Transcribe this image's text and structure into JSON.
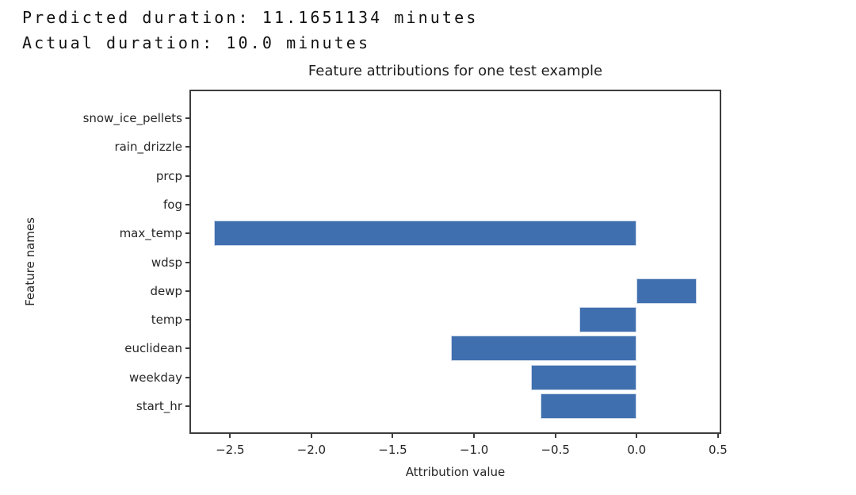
{
  "header": {
    "line1": "Predicted duration: 11.1651134 minutes",
    "line2": "Actual duration: 10.0 minutes"
  },
  "chart_data": {
    "type": "bar",
    "orientation": "horizontal",
    "title": "Feature attributions for one test example",
    "xlabel": "Attribution value",
    "ylabel": "Feature names",
    "categories": [
      "snow_ice_pellets",
      "rain_drizzle",
      "prcp",
      "fog",
      "max_temp",
      "wdsp",
      "dewp",
      "temp",
      "euclidean",
      "weekday",
      "start_hr"
    ],
    "values": [
      0.0,
      0.0,
      0.0,
      0.0,
      -2.6,
      0.0,
      0.37,
      -0.35,
      -1.14,
      -0.65,
      -0.59
    ],
    "xlim": [
      -2.75,
      0.52
    ],
    "xticks": [
      -2.5,
      -2.0,
      -1.5,
      -1.0,
      -0.5,
      0.0,
      0.5
    ],
    "xtick_labels": [
      "−2.5",
      "−2.0",
      "−1.5",
      "−1.0",
      "−0.5",
      "0.0",
      "0.5"
    ],
    "grid": false,
    "legend_position": "none",
    "bar_color": "#3f6fae",
    "bar_edge_color": "#ccd8ea",
    "spine_color": "#3d3d3d",
    "text_color": "#262626"
  }
}
